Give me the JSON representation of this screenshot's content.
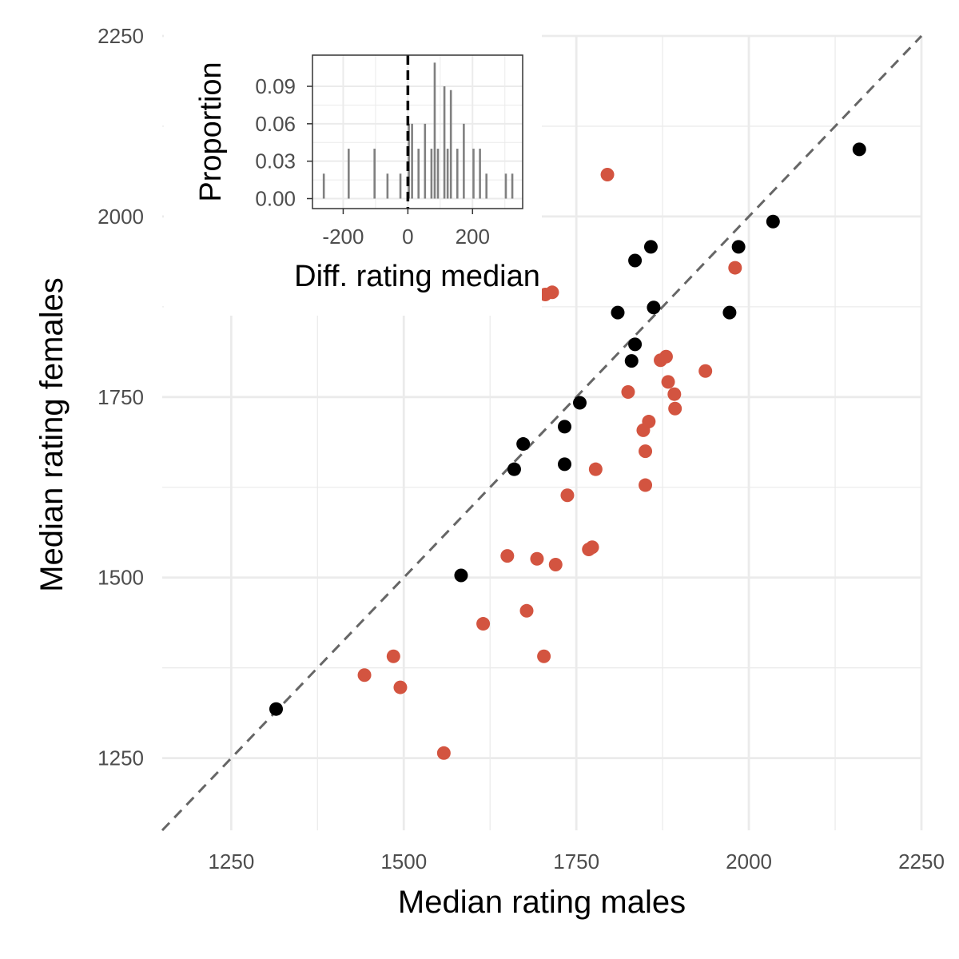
{
  "chart_data": [
    {
      "type": "scatter",
      "xlabel": "Median rating males",
      "ylabel": "Median rating females",
      "xlim": [
        1150,
        2250
      ],
      "ylim": [
        1150,
        2250
      ],
      "x_ticks": [
        1250,
        1500,
        1750,
        2000,
        2250
      ],
      "y_ticks": [
        1250,
        1500,
        1750,
        2000,
        2250
      ],
      "grid": true,
      "reference_line": {
        "style": "dashed",
        "slope": 1,
        "intercept": 0,
        "color": "#666666"
      },
      "colors": {
        "black": "#000000",
        "red": "#d35440"
      },
      "points": [
        {
          "x": 1315,
          "y": 1318,
          "color": "black"
        },
        {
          "x": 1583,
          "y": 1503,
          "color": "black"
        },
        {
          "x": 1660,
          "y": 1650,
          "color": "black"
        },
        {
          "x": 1673,
          "y": 1685,
          "color": "black"
        },
        {
          "x": 1733,
          "y": 1709,
          "color": "black"
        },
        {
          "x": 1733,
          "y": 1657,
          "color": "black"
        },
        {
          "x": 1755,
          "y": 1742,
          "color": "black"
        },
        {
          "x": 1810,
          "y": 1867,
          "color": "black"
        },
        {
          "x": 1830,
          "y": 1800,
          "color": "black"
        },
        {
          "x": 1835,
          "y": 1823,
          "color": "black"
        },
        {
          "x": 1835,
          "y": 1939,
          "color": "black"
        },
        {
          "x": 1858,
          "y": 1958,
          "color": "black"
        },
        {
          "x": 1862,
          "y": 1874,
          "color": "black"
        },
        {
          "x": 1972,
          "y": 1867,
          "color": "black"
        },
        {
          "x": 1985,
          "y": 1958,
          "color": "black"
        },
        {
          "x": 2035,
          "y": 1993,
          "color": "black"
        },
        {
          "x": 2160,
          "y": 2093,
          "color": "black"
        },
        {
          "x": 1443,
          "y": 1365,
          "color": "red"
        },
        {
          "x": 1485,
          "y": 1391,
          "color": "red"
        },
        {
          "x": 1495,
          "y": 1348,
          "color": "red"
        },
        {
          "x": 1558,
          "y": 1257,
          "color": "red"
        },
        {
          "x": 1615,
          "y": 1436,
          "color": "red"
        },
        {
          "x": 1650,
          "y": 1530,
          "color": "red"
        },
        {
          "x": 1678,
          "y": 1454,
          "color": "red"
        },
        {
          "x": 1693,
          "y": 1526,
          "color": "red"
        },
        {
          "x": 1703,
          "y": 1391,
          "color": "red"
        },
        {
          "x": 1705,
          "y": 1892,
          "color": "red"
        },
        {
          "x": 1715,
          "y": 1895,
          "color": "red"
        },
        {
          "x": 1720,
          "y": 1518,
          "color": "red"
        },
        {
          "x": 1737,
          "y": 1614,
          "color": "red"
        },
        {
          "x": 1768,
          "y": 1539,
          "color": "red"
        },
        {
          "x": 1773,
          "y": 1542,
          "color": "red"
        },
        {
          "x": 1778,
          "y": 1650,
          "color": "red"
        },
        {
          "x": 1795,
          "y": 2058,
          "color": "red"
        },
        {
          "x": 1825,
          "y": 1757,
          "color": "red"
        },
        {
          "x": 1847,
          "y": 1704,
          "color": "red"
        },
        {
          "x": 1850,
          "y": 1675,
          "color": "red"
        },
        {
          "x": 1850,
          "y": 1628,
          "color": "red"
        },
        {
          "x": 1855,
          "y": 1716,
          "color": "red"
        },
        {
          "x": 1872,
          "y": 1801,
          "color": "red"
        },
        {
          "x": 1880,
          "y": 1806,
          "color": "red"
        },
        {
          "x": 1883,
          "y": 1771,
          "color": "red"
        },
        {
          "x": 1892,
          "y": 1754,
          "color": "red"
        },
        {
          "x": 1893,
          "y": 1734,
          "color": "red"
        },
        {
          "x": 1937,
          "y": 1786,
          "color": "red"
        },
        {
          "x": 1980,
          "y": 1929,
          "color": "red"
        }
      ]
    },
    {
      "type": "bar",
      "xlabel": "Diff. rating median",
      "ylabel": "Proportion",
      "xlim": [
        -295,
        355
      ],
      "ylim": [
        -0.008,
        0.115
      ],
      "x_ticks": [
        -200,
        0,
        200
      ],
      "x_tick_labels": [
        "-200",
        "0",
        "200"
      ],
      "y_ticks": [
        0.0,
        0.03,
        0.06,
        0.09
      ],
      "y_tick_labels": [
        "0.00",
        "0.03",
        "0.06",
        "0.09"
      ],
      "grid": true,
      "reference_line": {
        "style": "dashed",
        "x": 0,
        "color": "#000000"
      },
      "bar_color": "#808080",
      "bars": [
        {
          "x": -260,
          "value": 0.02
        },
        {
          "x": -183,
          "value": 0.04
        },
        {
          "x": -103,
          "value": 0.04
        },
        {
          "x": -63,
          "value": 0.02
        },
        {
          "x": -23,
          "value": 0.02
        },
        {
          "x": 3,
          "value": 0.06
        },
        {
          "x": 13,
          "value": 0.06
        },
        {
          "x": 33,
          "value": 0.04
        },
        {
          "x": 53,
          "value": 0.06
        },
        {
          "x": 73,
          "value": 0.04
        },
        {
          "x": 83,
          "value": 0.109
        },
        {
          "x": 93,
          "value": 0.04
        },
        {
          "x": 113,
          "value": 0.09
        },
        {
          "x": 123,
          "value": 0.04
        },
        {
          "x": 133,
          "value": 0.087
        },
        {
          "x": 153,
          "value": 0.04
        },
        {
          "x": 173,
          "value": 0.06
        },
        {
          "x": 203,
          "value": 0.04
        },
        {
          "x": 223,
          "value": 0.04
        },
        {
          "x": 243,
          "value": 0.02
        },
        {
          "x": 303,
          "value": 0.02
        },
        {
          "x": 323,
          "value": 0.02
        }
      ]
    }
  ]
}
